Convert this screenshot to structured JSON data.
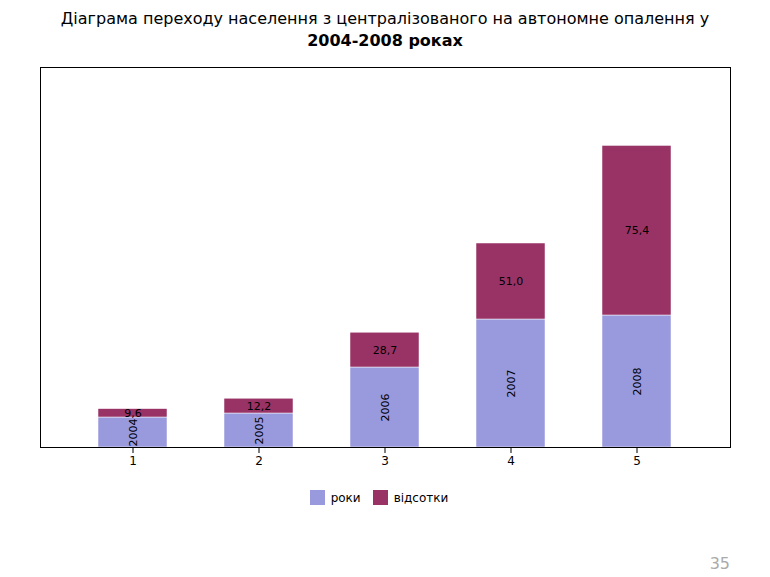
{
  "chart_data": {
    "type": "bar",
    "title": "Діаграма переходу населення з централізованого на автономне опалення у\n2004-2008 роках",
    "categories": [
      "1",
      "2",
      "3",
      "4",
      "5"
    ],
    "series": [
      {
        "name": "роки",
        "color": "#9999dd",
        "values": [
          7.5,
          8.5,
          20.0,
          32.0,
          33.0
        ]
      },
      {
        "name": "відсотки",
        "color": "#993366",
        "values": [
          2.1,
          3.7,
          8.7,
          19.0,
          42.4
        ]
      }
    ],
    "stacked": true,
    "ylim": [
      0,
      95
    ],
    "yticks": [],
    "tick_labels": "x",
    "grid": false,
    "legend": "bottom",
    "annotations": [
      {
        "x": "1",
        "series": "роки",
        "text": "2004"
      },
      {
        "x": "2",
        "series": "роки",
        "text": "2005"
      },
      {
        "x": "3",
        "series": "роки",
        "text": "2006"
      },
      {
        "x": "4",
        "series": "роки",
        "text": "2007"
      },
      {
        "x": "5",
        "series": "роки",
        "text": "2008"
      },
      {
        "x": "1",
        "series": "відсотки",
        "text": "9,6"
      },
      {
        "x": "2",
        "series": "відсотки",
        "text": "12,2"
      },
      {
        "x": "3",
        "series": "відсотки",
        "text": "28,7"
      },
      {
        "x": "4",
        "series": "відсотки",
        "text": "51,0"
      },
      {
        "x": "5",
        "series": "відсотки",
        "text": "75,4"
      },
      {
        "text": "35"
      }
    ]
  }
}
